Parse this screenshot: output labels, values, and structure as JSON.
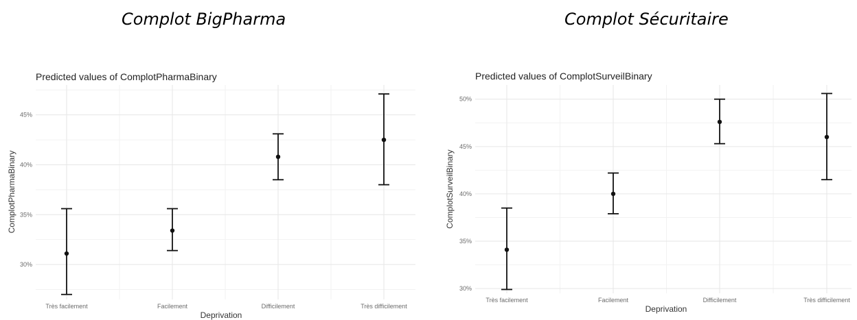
{
  "headings": [
    "Complot BigPharma",
    "Complot Sécuritaire"
  ],
  "chart_data": [
    {
      "type": "scatter",
      "title": "Predicted values of ComplotPharmaBinary",
      "xlabel": "Deprivation",
      "ylabel": "ComplotPharmaBinary",
      "categories": [
        "Très facilement",
        "Facilement",
        "Difficilement",
        "Très difficilement"
      ],
      "values": [
        31.1,
        33.4,
        40.8,
        42.5
      ],
      "ci_low": [
        27.0,
        31.4,
        38.5,
        38.0
      ],
      "ci_high": [
        35.6,
        35.6,
        43.1,
        47.1
      ],
      "yticks": [
        30,
        35,
        40,
        45
      ],
      "ytick_labels": [
        "30%",
        "35%",
        "40%",
        "45%"
      ],
      "ylim": [
        26.5,
        48.0
      ],
      "grid": true
    },
    {
      "type": "scatter",
      "title": "Predicted values of ComplotSurveilBinary",
      "xlabel": "Deprivation",
      "ylabel": "ComplotSurveilBinary",
      "categories": [
        "Très facilement",
        "Facilement",
        "Difficilement",
        "Très difficilement"
      ],
      "values": [
        34.1,
        40.0,
        47.6,
        46.0
      ],
      "ci_low": [
        29.9,
        37.9,
        45.3,
        41.5
      ],
      "ci_high": [
        38.5,
        42.2,
        50.0,
        50.6
      ],
      "yticks": [
        30,
        35,
        40,
        45,
        50
      ],
      "ytick_labels": [
        "30%",
        "35%",
        "40%",
        "45%",
        "50%"
      ],
      "ylim": [
        29.5,
        51.5
      ],
      "grid": true
    }
  ]
}
